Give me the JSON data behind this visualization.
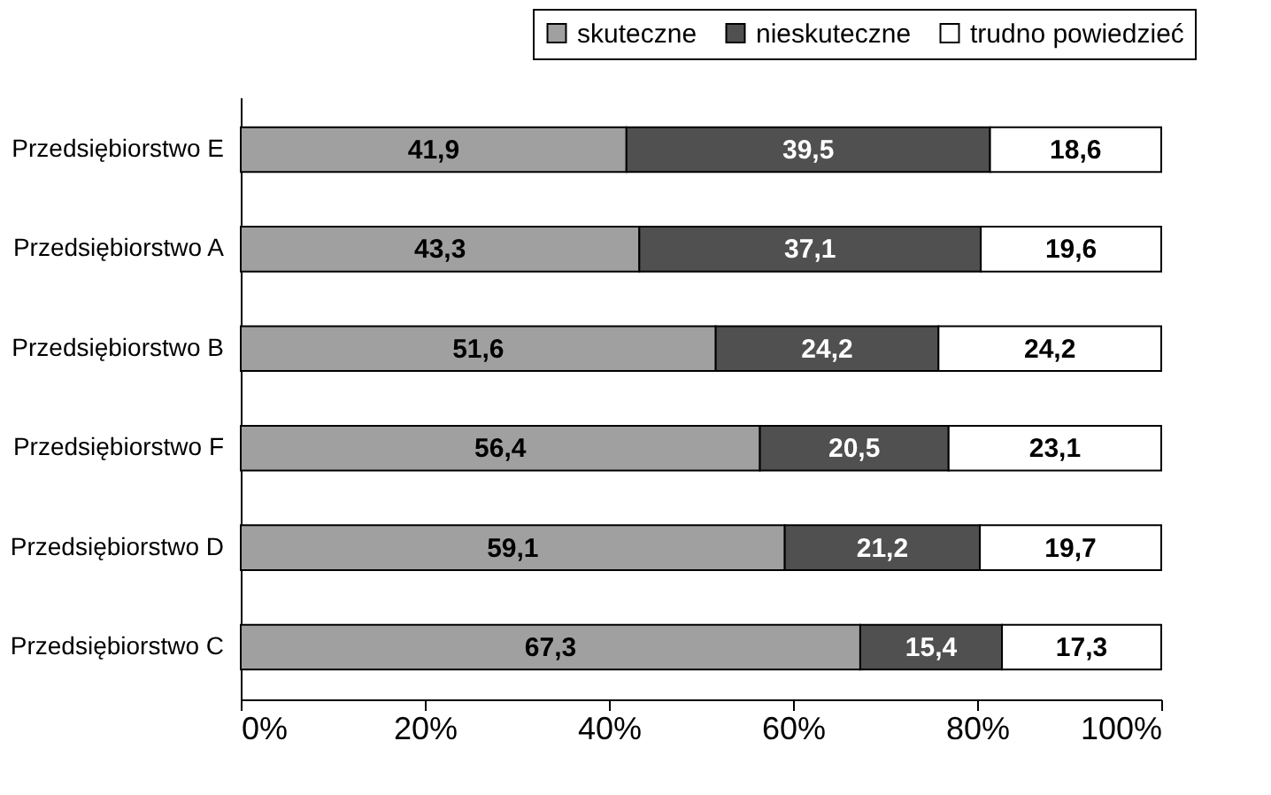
{
  "chart_data": {
    "type": "bar",
    "orientation": "horizontal",
    "stacked": true,
    "legend": "top right",
    "grid": false,
    "categories": [
      "Przedsiębiorstwo E",
      "Przedsiębiorstwo A",
      "Przedsiębiorstwo B",
      "Przedsiębiorstwo F",
      "Przedsiębiorstwo D",
      "Przedsiębiorstwo C"
    ],
    "series": [
      {
        "name": "skuteczne",
        "color": "#a0a0a0",
        "values": [
          41.9,
          43.3,
          51.6,
          56.4,
          59.1,
          67.3
        ],
        "value_labels": [
          "41,9",
          "43,3",
          "51,6",
          "56,4",
          "59,1",
          "67,3"
        ]
      },
      {
        "name": "nieskuteczne",
        "color": "#505050",
        "values": [
          39.5,
          37.1,
          24.2,
          20.5,
          21.2,
          15.4
        ],
        "value_labels": [
          "39,5",
          "37,1",
          "24,2",
          "20,5",
          "21,2",
          "15,4"
        ]
      },
      {
        "name": "trudno powiedzieć",
        "color": "#ffffff",
        "values": [
          18.6,
          19.6,
          24.2,
          23.1,
          19.7,
          17.3
        ],
        "value_labels": [
          "18,6",
          "19,6",
          "24,2",
          "23,1",
          "19,7",
          "17,3"
        ]
      }
    ],
    "xlim": [
      0,
      100
    ],
    "xticks": [
      {
        "value": 0,
        "label": "0%"
      },
      {
        "value": 20,
        "label": "20%"
      },
      {
        "value": 40,
        "label": "40%"
      },
      {
        "value": 60,
        "label": "60%"
      },
      {
        "value": 80,
        "label": "80%"
      },
      {
        "value": 100,
        "label": "100%"
      }
    ]
  }
}
